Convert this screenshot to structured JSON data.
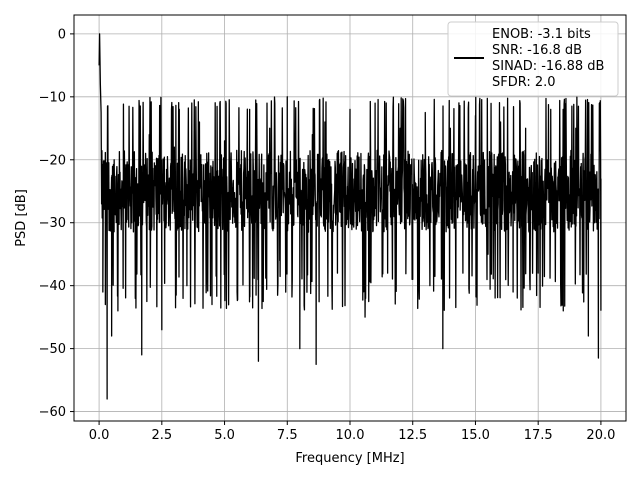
{
  "chart_data": {
    "type": "line",
    "title": "",
    "xlabel": "Frequency [MHz]",
    "ylabel": "PSD [dB]",
    "xlim": [
      -1.0,
      21.0
    ],
    "ylim": [
      -61.5,
      3.0
    ],
    "xticks": [
      0.0,
      2.5,
      5.0,
      7.5,
      10.0,
      12.5,
      15.0,
      17.5,
      20.0
    ],
    "xtick_labels": [
      "0.0",
      "2.5",
      "5.0",
      "7.5",
      "10.0",
      "12.5",
      "15.0",
      "17.5",
      "20.0"
    ],
    "yticks": [
      0,
      -10,
      -20,
      -30,
      -40,
      -50,
      -60
    ],
    "ytick_labels": [
      "0",
      "−10",
      "−20",
      "−30",
      "−40",
      "−50",
      "−60"
    ],
    "grid": true,
    "legend_position": "top-right",
    "series_color": "#000000",
    "legend_lines": [
      "ENOB: -3.1 bits",
      "SNR: -16.8 dB",
      "SINAD: -16.88 dB",
      "SFDR: 2.0"
    ],
    "series": [
      {
        "noise_floor_range": [
          -38,
          -12
        ],
        "x": [
          0.0,
          0.02,
          0.05,
          0.08,
          0.1,
          0.15,
          0.25,
          0.32,
          0.5,
          0.6,
          0.75,
          1.0,
          1.3,
          1.7,
          2.0,
          2.5,
          3.0,
          3.5,
          4.0,
          4.5,
          5.0,
          5.5,
          6.0,
          6.35,
          6.8,
          7.2,
          7.5,
          8.0,
          8.5,
          8.65,
          9.0,
          9.5,
          10.0,
          10.6,
          11.0,
          11.5,
          12.0,
          12.5,
          13.0,
          13.7,
          14.0,
          14.5,
          15.0,
          15.5,
          16.0,
          16.5,
          17.0,
          17.5,
          18.0,
          18.5,
          19.0,
          19.5,
          19.9,
          20.0
        ],
        "y": [
          -5.0,
          0.0,
          -8.0,
          -12.5,
          -27.0,
          -41.0,
          -43.0,
          -58.0,
          -48.0,
          -20.0,
          -44.0,
          -19.0,
          -30.0,
          -51.0,
          -16.0,
          -47.0,
          -18.0,
          -40.0,
          -14.0,
          -43.0,
          -17.0,
          -41.0,
          -12.0,
          -52.0,
          -15.0,
          -36.0,
          -10.0,
          -50.0,
          -16.0,
          -52.5,
          -14.0,
          -38.0,
          -12.0,
          -45.0,
          -11.0,
          -38.0,
          -15.0,
          -39.0,
          -12.5,
          -50.0,
          -15.0,
          -38.0,
          -13.0,
          -35.0,
          -14.0,
          -41.0,
          -15.0,
          -38.0,
          -12.0,
          -44.0,
          -15.0,
          -48.0,
          -51.5,
          -23.0
        ]
      }
    ]
  }
}
